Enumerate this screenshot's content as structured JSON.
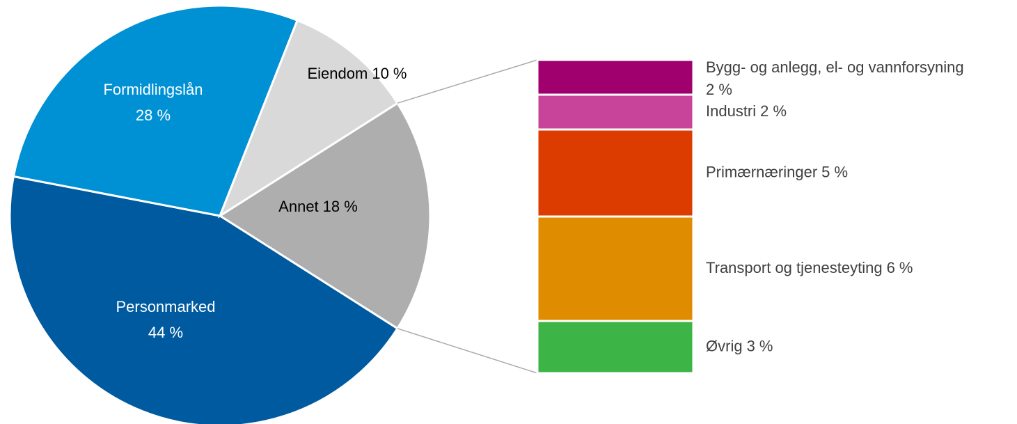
{
  "chart_data": {
    "type": "pie-of-bar",
    "categories": [
      "Annet",
      "Personmarked",
      "Formidlingslån",
      "Eiendom"
    ],
    "values": [
      18,
      44,
      28,
      10
    ],
    "value_labels": [
      "18 %",
      "44 %",
      "28 %",
      "10 %"
    ],
    "colors": [
      "#aeaeae",
      "#005aa0",
      "#0090d4",
      "#d9d9d9"
    ],
    "breakdown": {
      "categories": [
        "Bygg- og anlegg, el- og vannforsyning",
        "Industri",
        "Primærnæringer",
        "Transport og tjenesteyting",
        "Øvrig"
      ],
      "values": [
        2,
        2,
        5,
        6,
        3
      ],
      "value_labels": [
        "2 %",
        "2 %",
        "5 %",
        "6 %",
        "3 %"
      ],
      "colors": [
        "#a0006e",
        "#c8449a",
        "#dc3c00",
        "#e08c00",
        "#3cb446"
      ]
    }
  }
}
